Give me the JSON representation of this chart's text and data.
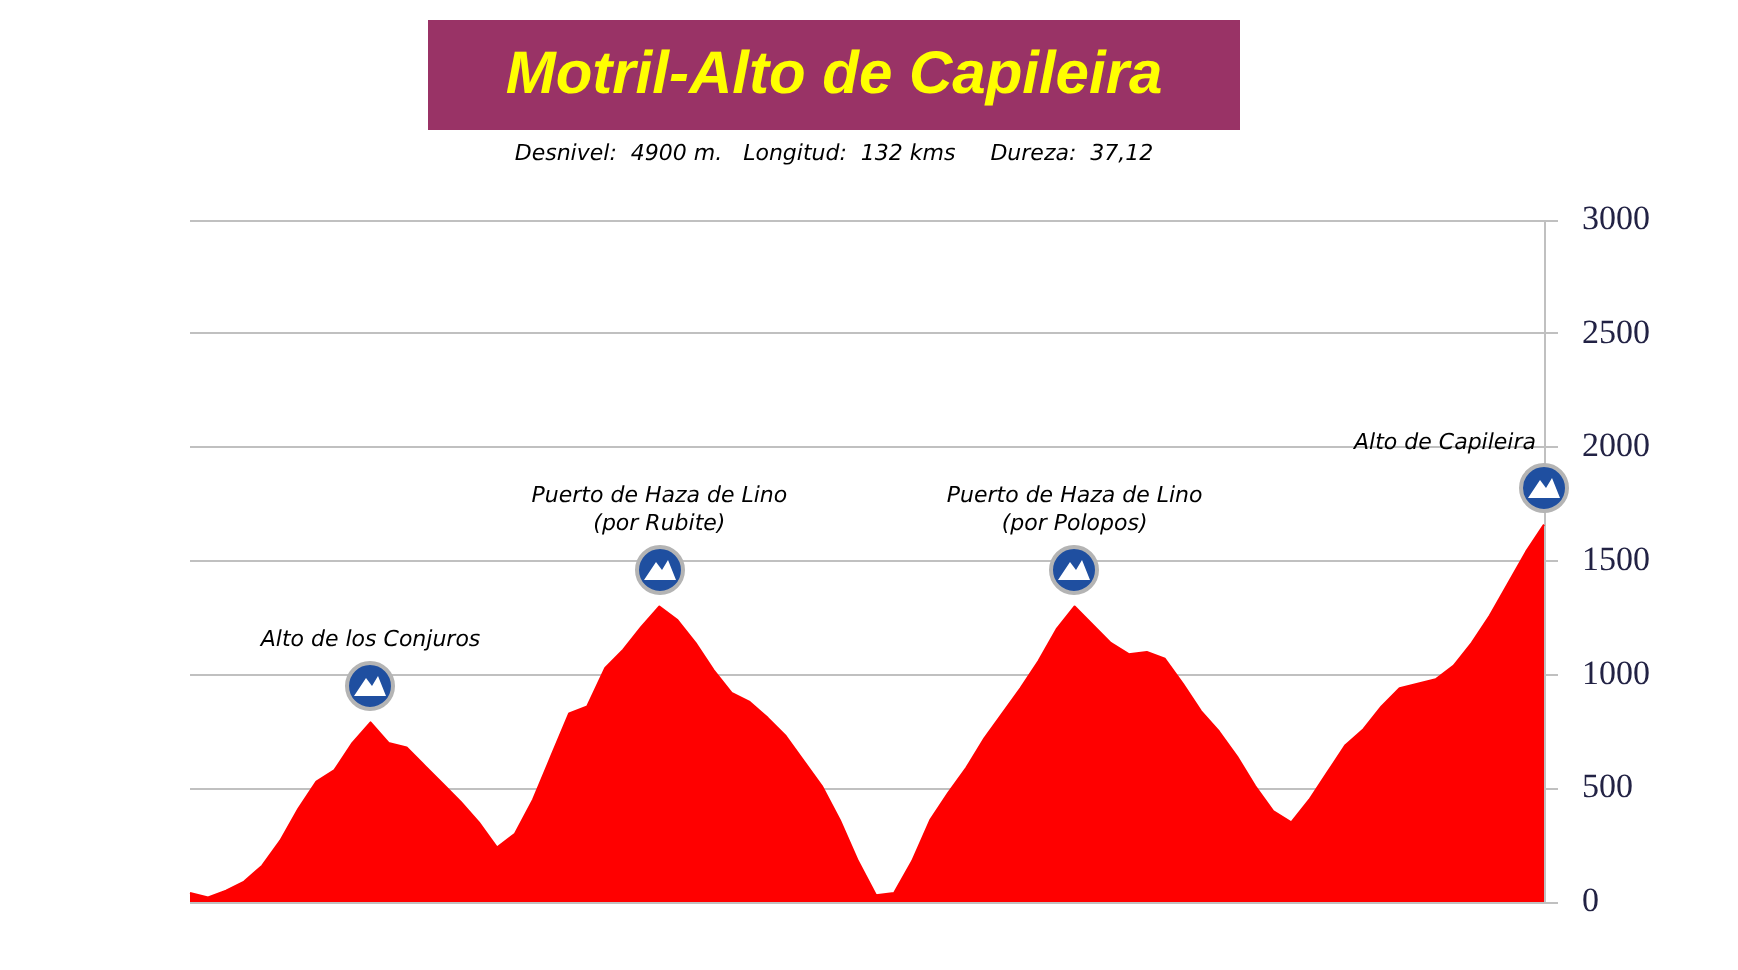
{
  "chart_data": {
    "type": "area",
    "title": "Motril-Alto de Capileira",
    "subtitle": "Desnivel:  4900 m.   Longitud:  132 kms     Dureza:  37,12",
    "categories": [
      null,
      null,
      null,
      null,
      null,
      null,
      null,
      null,
      null,
      null,
      null,
      null,
      null,
      null,
      null,
      null,
      null,
      null,
      null,
      null,
      null,
      null,
      null,
      null,
      null,
      null,
      null,
      null,
      null,
      null,
      null,
      null,
      null,
      null,
      null,
      null,
      null,
      null,
      null,
      null,
      null,
      null,
      null,
      null,
      null,
      null,
      null,
      null,
      null,
      null,
      null,
      null,
      null,
      null,
      null,
      null,
      null,
      null,
      null,
      null,
      null,
      null,
      null,
      null,
      null,
      null,
      null,
      null,
      null,
      null,
      null,
      null,
      null,
      null,
      null,
      null
    ],
    "values": [
      40,
      20,
      50,
      90,
      160,
      270,
      410,
      530,
      580,
      700,
      790,
      700,
      680,
      600,
      520,
      440,
      350,
      240,
      300,
      450,
      640,
      830,
      860,
      1030,
      1110,
      1210,
      1300,
      1240,
      1140,
      1020,
      920,
      880,
      810,
      730,
      620,
      510,
      360,
      180,
      30,
      40,
      180,
      360,
      480,
      590,
      720,
      830,
      940,
      1060,
      1200,
      1300,
      1220,
      1140,
      1090,
      1100,
      1070,
      960,
      840,
      750,
      640,
      510,
      400,
      350,
      450,
      570,
      690,
      760,
      860,
      940,
      960,
      980,
      1040,
      1140,
      1260,
      1400,
      1540,
      1660
    ],
    "color": "#ff0000",
    "ylim": [
      0,
      3000
    ],
    "yticks": [
      0,
      500,
      1000,
      1500,
      2000,
      2500,
      3000
    ],
    "grid": "y",
    "tick_labels": "y",
    "annotations": [
      "Alto de los Conjuros",
      "Puerto de Haza de Lino\n(por Rubite)",
      "Puerto de Haza de Lino\n(por Polopos)",
      "Alto de Capileira"
    ]
  }
}
